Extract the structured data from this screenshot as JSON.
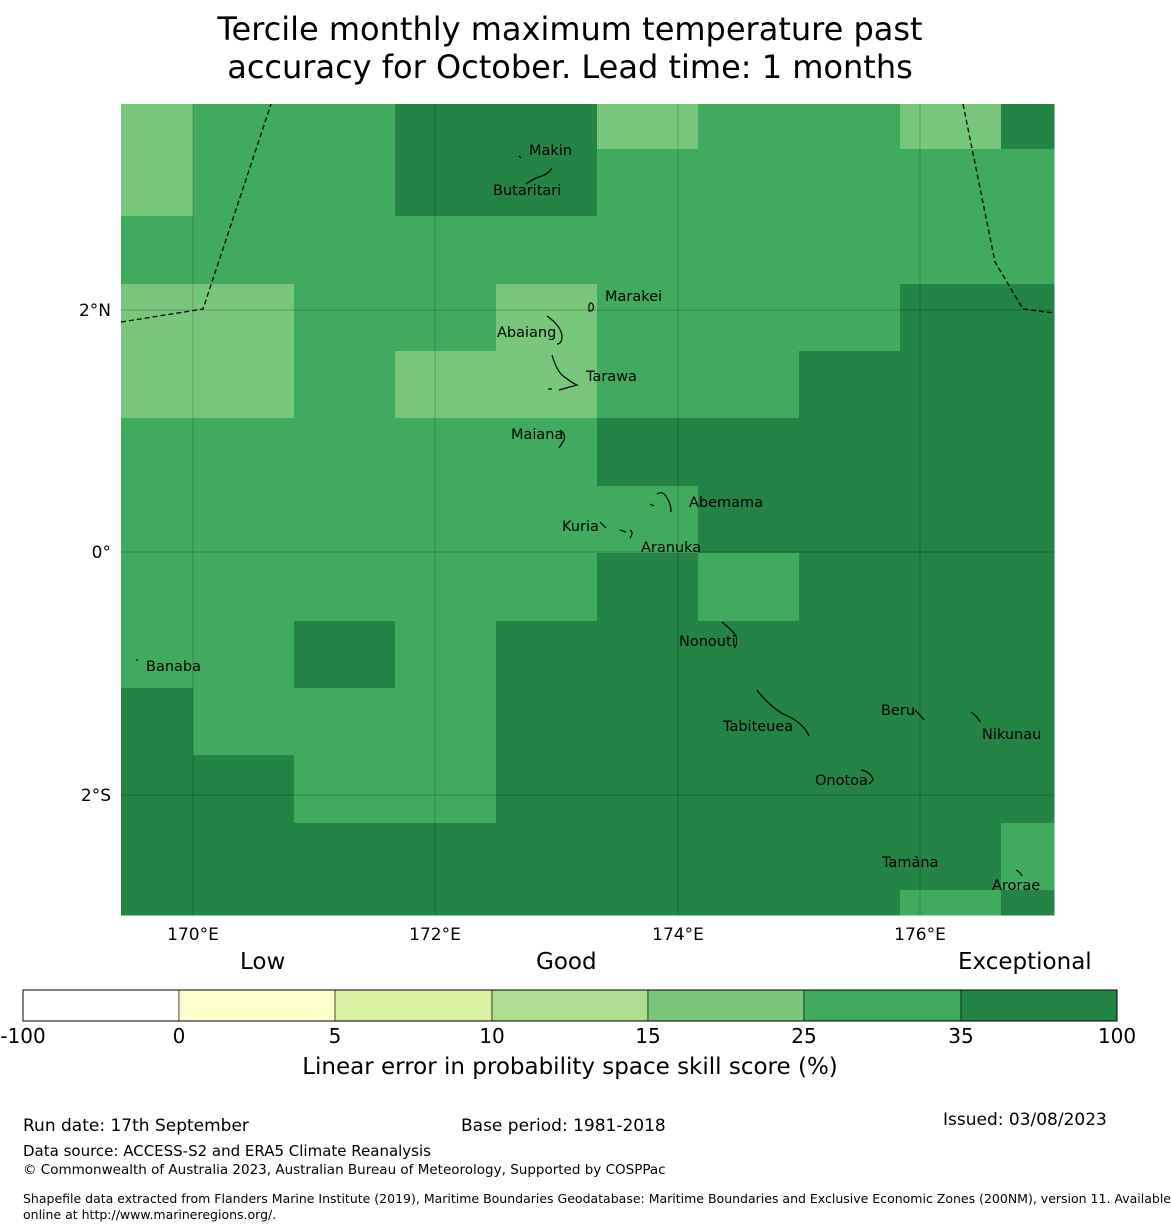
{
  "title": {
    "line1": "Tercile monthly maximum temperature past",
    "line2": "accuracy for October. Lead time: 1 months"
  },
  "map": {
    "lon_ticks": [
      "170°E",
      "172°E",
      "174°E",
      "176°E"
    ],
    "lat_ticks": [
      "2°N",
      "0°",
      "2°S"
    ],
    "islands": [
      "Makin",
      "Butaritari",
      "Marakei",
      "Abaiang",
      "Tarawa",
      "Maiana",
      "Abemama",
      "Kuria",
      "Aranuka",
      "Banaba",
      "Nonouti",
      "Beru",
      "Nikunau",
      "Tabiteuea",
      "Onotoa",
      "Tamana",
      "Arorae"
    ]
  },
  "colorbar": {
    "categories": [
      "Low",
      "Good",
      "Exceptional"
    ],
    "ticks": [
      "-100",
      "0",
      "5",
      "10",
      "15",
      "25",
      "35",
      "100"
    ],
    "colors": [
      "#ffffff",
      "#ffffcc",
      "#d9f0a3",
      "#addd8e",
      "#78c679",
      "#41ab5d",
      "#238443"
    ],
    "label": "Linear error in probability space skill score (%)"
  },
  "footer": {
    "run_date": "Run date: 17th September",
    "base_period": "Base period: 1981-2018",
    "issued": "Issued: 03/08/2023",
    "data_source": "Data source: ACCESS-S2 and ERA5 Climate Reanalysis",
    "copyright": "© Commonwealth of Australia 2023, Australian Bureau of Meteorology, Supported by COSPPac",
    "shapefile_line1": "Shapefile data extracted from Flanders Marine Institute (2019), Maritime Boundaries Geodatabase: Maritime Boundaries and Exclusive Economic Zones (200NM), version 11. Available",
    "shapefile_line2": "online at http://www.marineregions.org/."
  },
  "chart_data": {
    "type": "heatmap",
    "title": "Tercile monthly maximum temperature past accuracy for October. Lead time: 1 months",
    "color_scale": "Linear error in probability space skill score (%)",
    "legend_bins": [
      "-100 to 0",
      "0 to 5",
      "5 to 10",
      "10 to 15",
      "15 to 25",
      "25 to 35",
      "35 to 100"
    ],
    "xlim": [
      "169.4°E",
      "177.1°E"
    ],
    "ylim": [
      "3.0°S",
      "3.7°N"
    ]
  }
}
